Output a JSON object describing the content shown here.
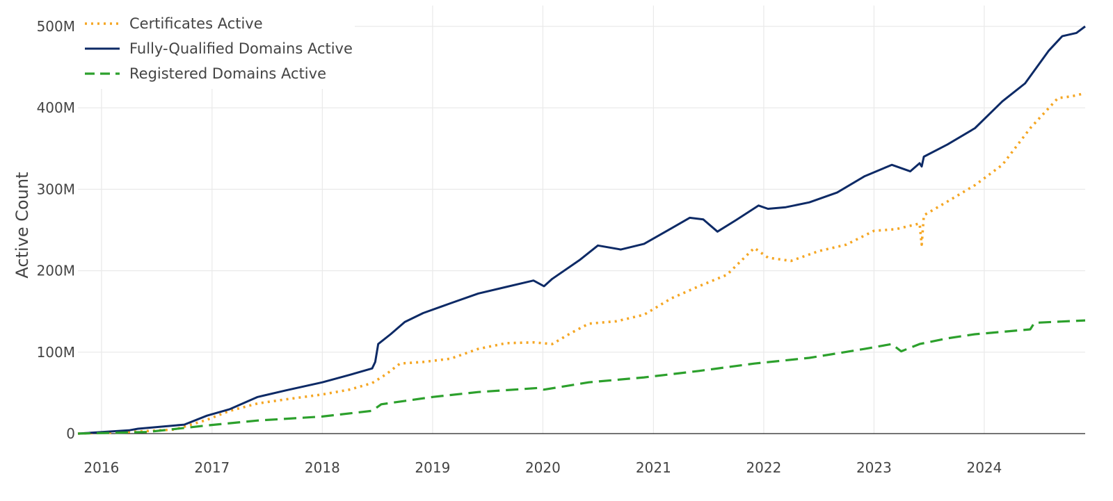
{
  "chart_data": {
    "type": "line",
    "title": "",
    "xlabel": "",
    "ylabel": "Active Count",
    "x_range": [
      "2015-10-15",
      "2024-11-30"
    ],
    "ylim": [
      0,
      500000000
    ],
    "y_ticks": [
      0,
      100000000,
      200000000,
      300000000,
      400000000,
      500000000
    ],
    "y_tick_labels": [
      "0",
      "100M",
      "200M",
      "300M",
      "400M",
      "500M"
    ],
    "x_ticks": [
      "2016-01-01",
      "2017-01-01",
      "2018-01-01",
      "2019-01-01",
      "2020-01-01",
      "2021-01-01",
      "2022-01-01",
      "2023-01-01",
      "2024-01-01"
    ],
    "x_tick_labels": [
      "2016",
      "2017",
      "2018",
      "2019",
      "2020",
      "2021",
      "2022",
      "2023",
      "2024"
    ],
    "grid": true,
    "legend_position": "top-left",
    "series": [
      {
        "name": "Certificates Active",
        "color": "#f5a623",
        "dash": "dotted",
        "points": [
          [
            "2015-10-15",
            0
          ],
          [
            "2016-04-01",
            2000000
          ],
          [
            "2016-09-01",
            5000000
          ],
          [
            "2016-12-15",
            17000000
          ],
          [
            "2017-03-01",
            28000000
          ],
          [
            "2017-06-01",
            37000000
          ],
          [
            "2017-09-01",
            42000000
          ],
          [
            "2018-01-01",
            48000000
          ],
          [
            "2018-04-01",
            54000000
          ],
          [
            "2018-06-15",
            62000000
          ],
          [
            "2018-08-01",
            73000000
          ],
          [
            "2018-09-15",
            86000000
          ],
          [
            "2018-12-01",
            88000000
          ],
          [
            "2019-03-01",
            92000000
          ],
          [
            "2019-06-01",
            104000000
          ],
          [
            "2019-09-01",
            111000000
          ],
          [
            "2019-12-01",
            112000000
          ],
          [
            "2020-02-01",
            110000000
          ],
          [
            "2020-04-01",
            123000000
          ],
          [
            "2020-06-01",
            135000000
          ],
          [
            "2020-09-01",
            138000000
          ],
          [
            "2020-12-01",
            146000000
          ],
          [
            "2021-03-01",
            166000000
          ],
          [
            "2021-06-01",
            181000000
          ],
          [
            "2021-09-01",
            195000000
          ],
          [
            "2021-12-01",
            228000000
          ],
          [
            "2022-01-15",
            216000000
          ],
          [
            "2022-04-01",
            212000000
          ],
          [
            "2022-07-01",
            224000000
          ],
          [
            "2022-10-01",
            232000000
          ],
          [
            "2023-01-01",
            249000000
          ],
          [
            "2023-03-15",
            251000000
          ],
          [
            "2023-06-01",
            258000000
          ],
          [
            "2023-06-08",
            232000000
          ],
          [
            "2023-06-15",
            268000000
          ],
          [
            "2023-09-01",
            285000000
          ],
          [
            "2023-12-01",
            305000000
          ],
          [
            "2024-03-01",
            330000000
          ],
          [
            "2024-06-01",
            375000000
          ],
          [
            "2024-09-01",
            412000000
          ],
          [
            "2024-10-15",
            414000000
          ],
          [
            "2024-11-30",
            418000000
          ]
        ]
      },
      {
        "name": "Fully-Qualified Domains Active",
        "color": "#0d2a66",
        "dash": "solid",
        "points": [
          [
            "2015-10-15",
            0
          ],
          [
            "2016-04-01",
            4000000
          ],
          [
            "2016-05-01",
            6000000
          ],
          [
            "2016-10-01",
            11000000
          ],
          [
            "2016-12-15",
            22000000
          ],
          [
            "2017-03-01",
            30000000
          ],
          [
            "2017-06-01",
            45000000
          ],
          [
            "2017-09-01",
            53000000
          ],
          [
            "2018-01-01",
            63000000
          ],
          [
            "2018-04-01",
            72000000
          ],
          [
            "2018-06-15",
            80000000
          ],
          [
            "2018-06-25",
            88000000
          ],
          [
            "2018-07-05",
            110000000
          ],
          [
            "2018-08-15",
            122000000
          ],
          [
            "2018-10-01",
            137000000
          ],
          [
            "2018-12-01",
            148000000
          ],
          [
            "2019-03-01",
            160000000
          ],
          [
            "2019-06-01",
            172000000
          ],
          [
            "2019-09-01",
            180000000
          ],
          [
            "2019-12-01",
            188000000
          ],
          [
            "2020-01-05",
            181000000
          ],
          [
            "2020-02-01",
            190000000
          ],
          [
            "2020-05-01",
            213000000
          ],
          [
            "2020-07-01",
            231000000
          ],
          [
            "2020-09-15",
            226000000
          ],
          [
            "2020-12-01",
            233000000
          ],
          [
            "2021-03-01",
            252000000
          ],
          [
            "2021-05-01",
            265000000
          ],
          [
            "2021-06-15",
            263000000
          ],
          [
            "2021-08-01",
            248000000
          ],
          [
            "2021-10-01",
            262000000
          ],
          [
            "2021-12-15",
            280000000
          ],
          [
            "2022-01-15",
            276000000
          ],
          [
            "2022-03-15",
            278000000
          ],
          [
            "2022-06-01",
            284000000
          ],
          [
            "2022-09-01",
            296000000
          ],
          [
            "2022-12-01",
            316000000
          ],
          [
            "2023-03-01",
            330000000
          ],
          [
            "2023-05-01",
            322000000
          ],
          [
            "2023-06-01",
            332000000
          ],
          [
            "2023-06-08",
            328000000
          ],
          [
            "2023-06-15",
            340000000
          ],
          [
            "2023-09-01",
            355000000
          ],
          [
            "2023-12-01",
            375000000
          ],
          [
            "2024-03-01",
            408000000
          ],
          [
            "2024-05-15",
            430000000
          ],
          [
            "2024-08-01",
            470000000
          ],
          [
            "2024-09-15",
            488000000
          ],
          [
            "2024-11-01",
            492000000
          ],
          [
            "2024-11-30",
            500000000
          ]
        ]
      },
      {
        "name": "Registered Domains Active",
        "color": "#2ca02c",
        "dash": "dashed",
        "points": [
          [
            "2015-10-15",
            0
          ],
          [
            "2016-06-01",
            2000000
          ],
          [
            "2016-12-15",
            10000000
          ],
          [
            "2017-06-01",
            16000000
          ],
          [
            "2018-01-01",
            21000000
          ],
          [
            "2018-06-15",
            28000000
          ],
          [
            "2018-07-15",
            36000000
          ],
          [
            "2019-01-01",
            45000000
          ],
          [
            "2019-06-01",
            51000000
          ],
          [
            "2019-12-15",
            56000000
          ],
          [
            "2020-01-05",
            54000000
          ],
          [
            "2020-06-01",
            63000000
          ],
          [
            "2020-12-01",
            69000000
          ],
          [
            "2021-06-01",
            77000000
          ],
          [
            "2021-12-01",
            86000000
          ],
          [
            "2022-06-01",
            93000000
          ],
          [
            "2022-12-01",
            104000000
          ],
          [
            "2023-03-01",
            110000000
          ],
          [
            "2023-04-01",
            101000000
          ],
          [
            "2023-06-01",
            110000000
          ],
          [
            "2023-09-01",
            117000000
          ],
          [
            "2023-12-01",
            122000000
          ],
          [
            "2024-06-01",
            128000000
          ],
          [
            "2024-06-15",
            136000000
          ],
          [
            "2024-11-30",
            139000000
          ]
        ]
      }
    ]
  }
}
